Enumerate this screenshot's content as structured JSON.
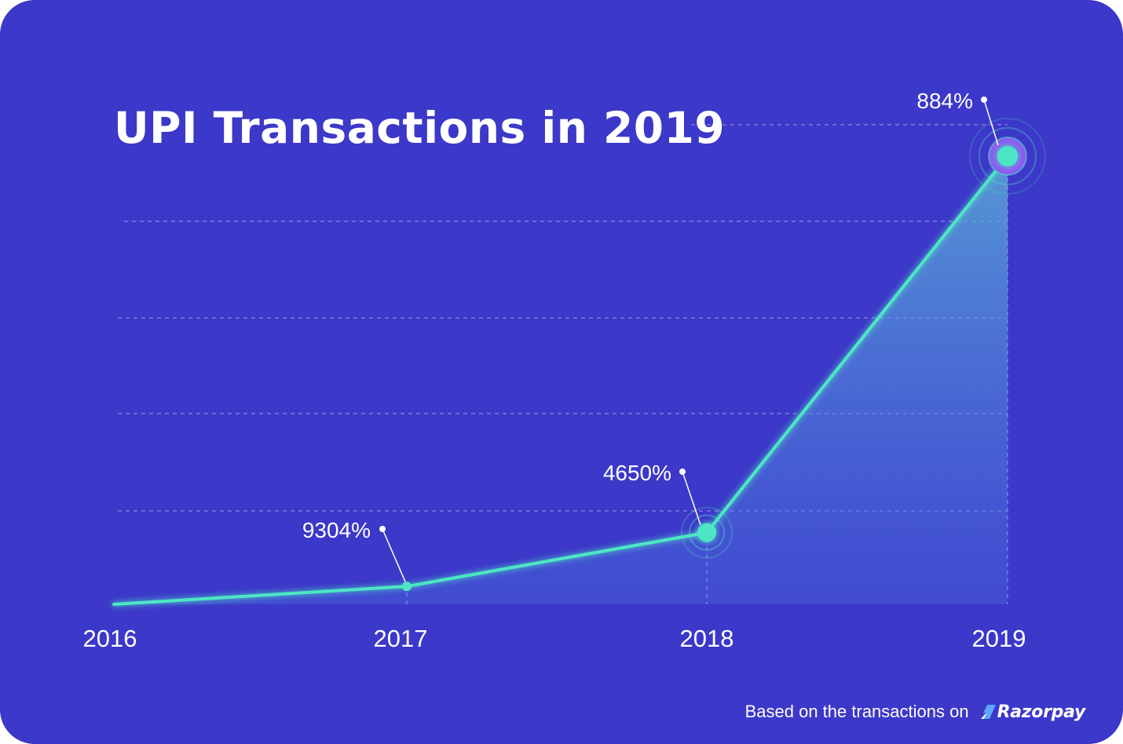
{
  "chart_data": {
    "type": "area",
    "title": "UPI Transactions in 2019",
    "xlabel": "",
    "ylabel": "",
    "categories": [
      "2016",
      "2017",
      "2018",
      "2019"
    ],
    "relative_values": [
      0.0,
      0.04,
      0.16,
      1.0
    ],
    "value_note_shown": false,
    "data_labels": [
      "",
      "9304%",
      "4650%",
      "884%"
    ],
    "grid": "horizontal dashed",
    "colors": {
      "background": "#3c38c9",
      "line": "#4de6c4",
      "marker": "#4de6c4",
      "marker_ring": "#8a5cf0",
      "area_fill": "#5fb8d8",
      "grid": "#8f8bea",
      "text": "#ffffff"
    }
  },
  "footer": {
    "text": "Based on the transactions on",
    "brand": "Razorpay",
    "brand_icon": "razorpay-logo-icon"
  }
}
